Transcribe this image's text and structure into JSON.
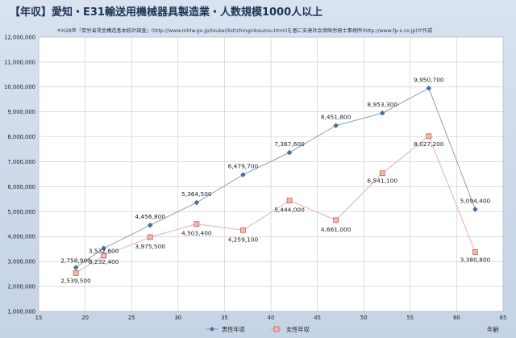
{
  "chart_data": {
    "type": "line",
    "title": "【年収】愛知・E31輸送用機械器具製造業・人数規模1000人以上",
    "subtitle": "＊H28年「厚労省賃金構造基本統計調査」(http://www.mhlw.go.jp/toukei/list/chinginkouzou.html)を基に安達社会保険労務士事務所(http://www.fp-s.co.jp)が作成",
    "xlabel": "年齢",
    "ylabel": "",
    "xlim": [
      15,
      65
    ],
    "ylim": [
      1000000,
      12000000
    ],
    "x_ticks": [
      15,
      20,
      25,
      30,
      35,
      40,
      45,
      50,
      55,
      60,
      65
    ],
    "y_ticks": [
      1000000,
      2000000,
      3000000,
      4000000,
      5000000,
      6000000,
      7000000,
      8000000,
      9000000,
      10000000,
      11000000,
      12000000
    ],
    "grid": true,
    "legend_position": "bottom",
    "series": [
      {
        "name": "男性年収",
        "color": "#4a6fa5",
        "marker": "diamond",
        "points": [
          {
            "x": 19,
            "y": 2758900,
            "label": "2,758,900"
          },
          {
            "x": 22,
            "y": 3532600,
            "label": "3,532,600"
          },
          {
            "x": 27,
            "y": 4456800,
            "label": "4,456,800"
          },
          {
            "x": 32,
            "y": 5364500,
            "label": "5,364,500"
          },
          {
            "x": 37,
            "y": 6479700,
            "label": "6,479,700"
          },
          {
            "x": 42,
            "y": 7367600,
            "label": "7,367,600"
          },
          {
            "x": 47,
            "y": 8451800,
            "label": "8,451,800"
          },
          {
            "x": 52,
            "y": 8953300,
            "label": "8,953,300"
          },
          {
            "x": 57,
            "y": 9950700,
            "label": "9,950,700"
          },
          {
            "x": 62,
            "y": 5094400,
            "label": "5,094,400"
          }
        ]
      },
      {
        "name": "女性年収",
        "color": "#d9807a",
        "marker": "square",
        "points": [
          {
            "x": 19,
            "y": 2539500,
            "label": "2,539,500"
          },
          {
            "x": 22,
            "y": 3232400,
            "label": "3,232,400"
          },
          {
            "x": 27,
            "y": 3975500,
            "label": "3,975,500"
          },
          {
            "x": 32,
            "y": 4503400,
            "label": "4,503,400"
          },
          {
            "x": 37,
            "y": 4259100,
            "label": "4,259,100"
          },
          {
            "x": 42,
            "y": 5444000,
            "label": "5,444,000"
          },
          {
            "x": 47,
            "y": 4661000,
            "label": "4,661,000"
          },
          {
            "x": 52,
            "y": 6541100,
            "label": "6,541,100"
          },
          {
            "x": 57,
            "y": 8027200,
            "label": "8,027,200"
          },
          {
            "x": 62,
            "y": 3380800,
            "label": "3,380,800"
          }
        ]
      }
    ]
  }
}
